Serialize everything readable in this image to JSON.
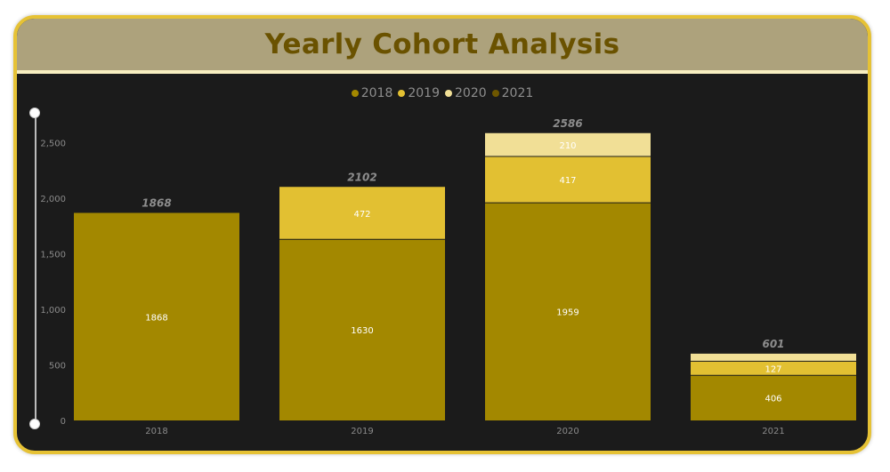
{
  "title": "Yearly Cohort Analysis",
  "colors": {
    "2018": "#a38800",
    "2019": "#e2c032",
    "2020": "#f1df96",
    "2021": "#6e5700",
    "frame": "#e6c235",
    "header_bg": "#ada27c",
    "title": "#6a5200",
    "plot_bg": "#1b1b1b"
  },
  "chart_data": {
    "type": "bar",
    "stacked": true,
    "title": "Yearly Cohort Analysis",
    "categories": [
      "2018",
      "2019",
      "2020",
      "2021"
    ],
    "series": [
      {
        "name": "2018",
        "values": [
          1868,
          1630,
          1959,
          406
        ]
      },
      {
        "name": "2019",
        "values": [
          0,
          472,
          417,
          127
        ]
      },
      {
        "name": "2020",
        "values": [
          0,
          0,
          210,
          68
        ]
      },
      {
        "name": "2021",
        "values": [
          0,
          0,
          0,
          0
        ]
      }
    ],
    "totals": [
      1868,
      2102,
      2586,
      601
    ],
    "segment_labels": [
      [
        "1868"
      ],
      [
        "1630",
        "472"
      ],
      [
        "1959",
        "417",
        "210"
      ],
      [
        "406",
        "127"
      ]
    ],
    "yticks": [
      "0",
      "500",
      "1,000",
      "1,500",
      "2,000",
      "2,500"
    ],
    "ylim": [
      0,
      2800
    ],
    "xlabel": "",
    "ylabel": "",
    "legend": "top-center",
    "grid": false
  }
}
